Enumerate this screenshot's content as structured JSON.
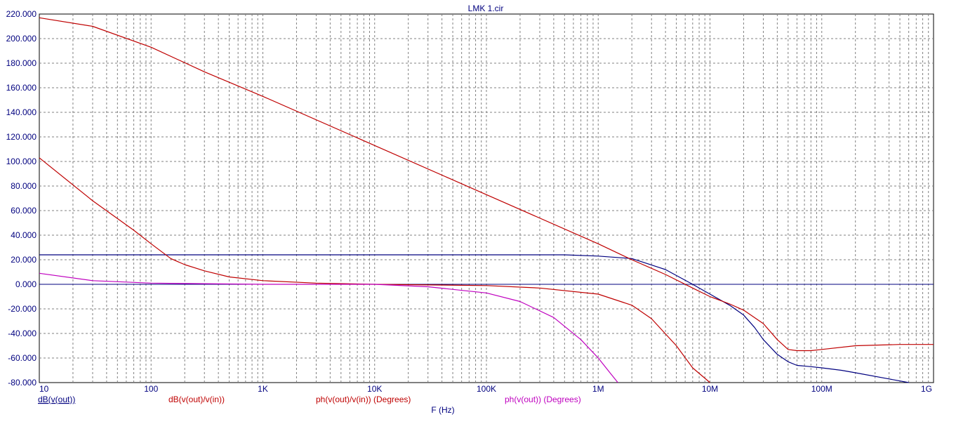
{
  "chart_data": {
    "type": "line",
    "title": "LMK 1.cir",
    "xlabel": "F (Hz)",
    "ylabel": "",
    "x_scale": "log",
    "xlim": [
      10,
      1000000000
    ],
    "ylim": [
      -80,
      220
    ],
    "grid": true,
    "x_tick_labels": [
      "10",
      "100",
      "1K",
      "10K",
      "100K",
      "1M",
      "10M",
      "100M",
      "1G"
    ],
    "x_tick_values": [
      10,
      100,
      1000,
      10000,
      100000,
      1000000,
      10000000,
      100000000,
      1000000000
    ],
    "y_tick_labels": [
      "220.000",
      "200.000",
      "180.000",
      "160.000",
      "140.000",
      "120.000",
      "100.000",
      "80.000",
      "60.000",
      "40.000",
      "20.000",
      "0.000",
      "-20.000",
      "-40.000",
      "-60.000",
      "-80.000"
    ],
    "y_tick_values": [
      220,
      200,
      180,
      160,
      140,
      120,
      100,
      80,
      60,
      40,
      20,
      0,
      -20,
      -40,
      -60,
      -80
    ],
    "series": [
      {
        "name": "dB(v(out))",
        "color": "#00007f",
        "x": [
          10,
          1000,
          100000,
          500000,
          1000000,
          2000000,
          4000000,
          7000000,
          10000000,
          15000000,
          20000000,
          25000000,
          30000000,
          40000000,
          50000000,
          60000000,
          80000000,
          100000000,
          150000000,
          200000000,
          400000000,
          600000000
        ],
        "y": [
          24,
          24,
          24,
          24,
          23,
          21,
          12,
          0,
          -8,
          -17,
          -25,
          -35,
          -45,
          -57,
          -63,
          -66,
          -67,
          -68,
          -70,
          -72,
          -77,
          -80
        ]
      },
      {
        "name": "dB(v(out)/v(in))",
        "color": "#bf0000",
        "x": [
          10,
          30,
          100,
          300,
          1000,
          10000,
          100000,
          1000000,
          2000000,
          4000000,
          7000000,
          10000000,
          15000000,
          20000000,
          30000000,
          40000000,
          50000000,
          60000000,
          80000000,
          100000000,
          200000000,
          500000000,
          1000000000
        ],
        "y": [
          217,
          210,
          193,
          173,
          153,
          113,
          73,
          33,
          20,
          8,
          -3,
          -10,
          -16,
          -21,
          -32,
          -45,
          -53,
          -54,
          -54,
          -53,
          -50,
          -49,
          -49
        ]
      },
      {
        "name": "ph(v(out)/v(in)) (Degrees)",
        "color": "#bf0000",
        "x": [
          10,
          30,
          70,
          100,
          150,
          200,
          300,
          500,
          1000,
          3000,
          10000,
          100000,
          300000,
          1000000,
          2000000,
          3000000,
          5000000,
          7000000,
          10000000
        ],
        "y": [
          103,
          68,
          44,
          33,
          21,
          16,
          11,
          6,
          3,
          1,
          0,
          -1,
          -3,
          -8,
          -17,
          -28,
          -50,
          -68,
          -80
        ]
      },
      {
        "name": "ph(v(out)) (Degrees)",
        "color": "#bf00bf",
        "x": [
          10,
          30,
          100,
          1000,
          10000,
          30000,
          100000,
          200000,
          400000,
          700000,
          1000000,
          1300000,
          1500000
        ],
        "y": [
          9,
          3,
          1,
          0,
          0,
          -2,
          -7,
          -14,
          -27,
          -45,
          -60,
          -73,
          -80
        ]
      }
    ]
  }
}
